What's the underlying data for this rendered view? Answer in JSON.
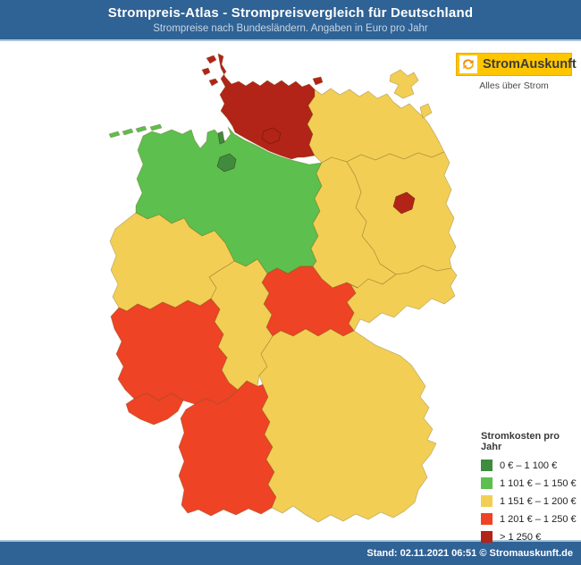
{
  "header": {
    "title": "Strompreis-Atlas - Strompreisvergleich für Deutschland",
    "subtitle": "Strompreise nach Bundesländern. Angaben in Euro pro Jahr"
  },
  "logo": {
    "name": "StromAuskunft",
    "tagline": "Alles über Strom",
    "box_color": "#ffc600",
    "icon": "swirl-icon",
    "icon_color": "#f08c00"
  },
  "legend": {
    "title": "Stromkosten pro Jahr",
    "items": [
      {
        "key": "cat1",
        "label": "0 € – 1 100 €",
        "color": "#3f8c3f"
      },
      {
        "key": "cat2",
        "label": "1 101 € – 1 150 €",
        "color": "#5dbf4d"
      },
      {
        "key": "cat3",
        "label": "1 151 € – 1 200 €",
        "color": "#f2cf54"
      },
      {
        "key": "cat4",
        "label": "1 201 € – 1 250 €",
        "color": "#ee4325"
      },
      {
        "key": "cat5",
        "label": "> 1 250 €",
        "color": "#b22417"
      }
    ]
  },
  "map": {
    "states": [
      {
        "id": "schleswig-holstein",
        "name": "Schleswig-Holstein",
        "category": "cat5"
      },
      {
        "id": "mecklenburg-vorpommern",
        "name": "Mecklenburg-Vorpommern",
        "category": "cat3"
      },
      {
        "id": "niedersachsen",
        "name": "Niedersachsen",
        "category": "cat2"
      },
      {
        "id": "brandenburg",
        "name": "Brandenburg",
        "category": "cat3"
      },
      {
        "id": "sachsen-anhalt",
        "name": "Sachsen-Anhalt",
        "category": "cat3"
      },
      {
        "id": "sachsen",
        "name": "Sachsen",
        "category": "cat3"
      },
      {
        "id": "thueringen",
        "name": "Thüringen",
        "category": "cat4"
      },
      {
        "id": "hessen",
        "name": "Hessen",
        "category": "cat3"
      },
      {
        "id": "nordrhein-westfalen",
        "name": "Nordrhein-Westfalen",
        "category": "cat3"
      },
      {
        "id": "rheinland-pfalz",
        "name": "Rheinland-Pfalz",
        "category": "cat4"
      },
      {
        "id": "saarland",
        "name": "Saarland",
        "category": "cat4"
      },
      {
        "id": "baden-wuerttemberg",
        "name": "Baden-Württemberg",
        "category": "cat4"
      },
      {
        "id": "bayern",
        "name": "Bayern",
        "category": "cat3"
      },
      {
        "id": "hamburg",
        "name": "Hamburg",
        "category": "cat5"
      },
      {
        "id": "bremen",
        "name": "Bremen",
        "category": "cat1"
      },
      {
        "id": "berlin",
        "name": "Berlin",
        "category": "cat5"
      }
    ]
  },
  "footer": {
    "text": "Stand: 02.11.2021 06:51 © Stromauskunft.de"
  }
}
